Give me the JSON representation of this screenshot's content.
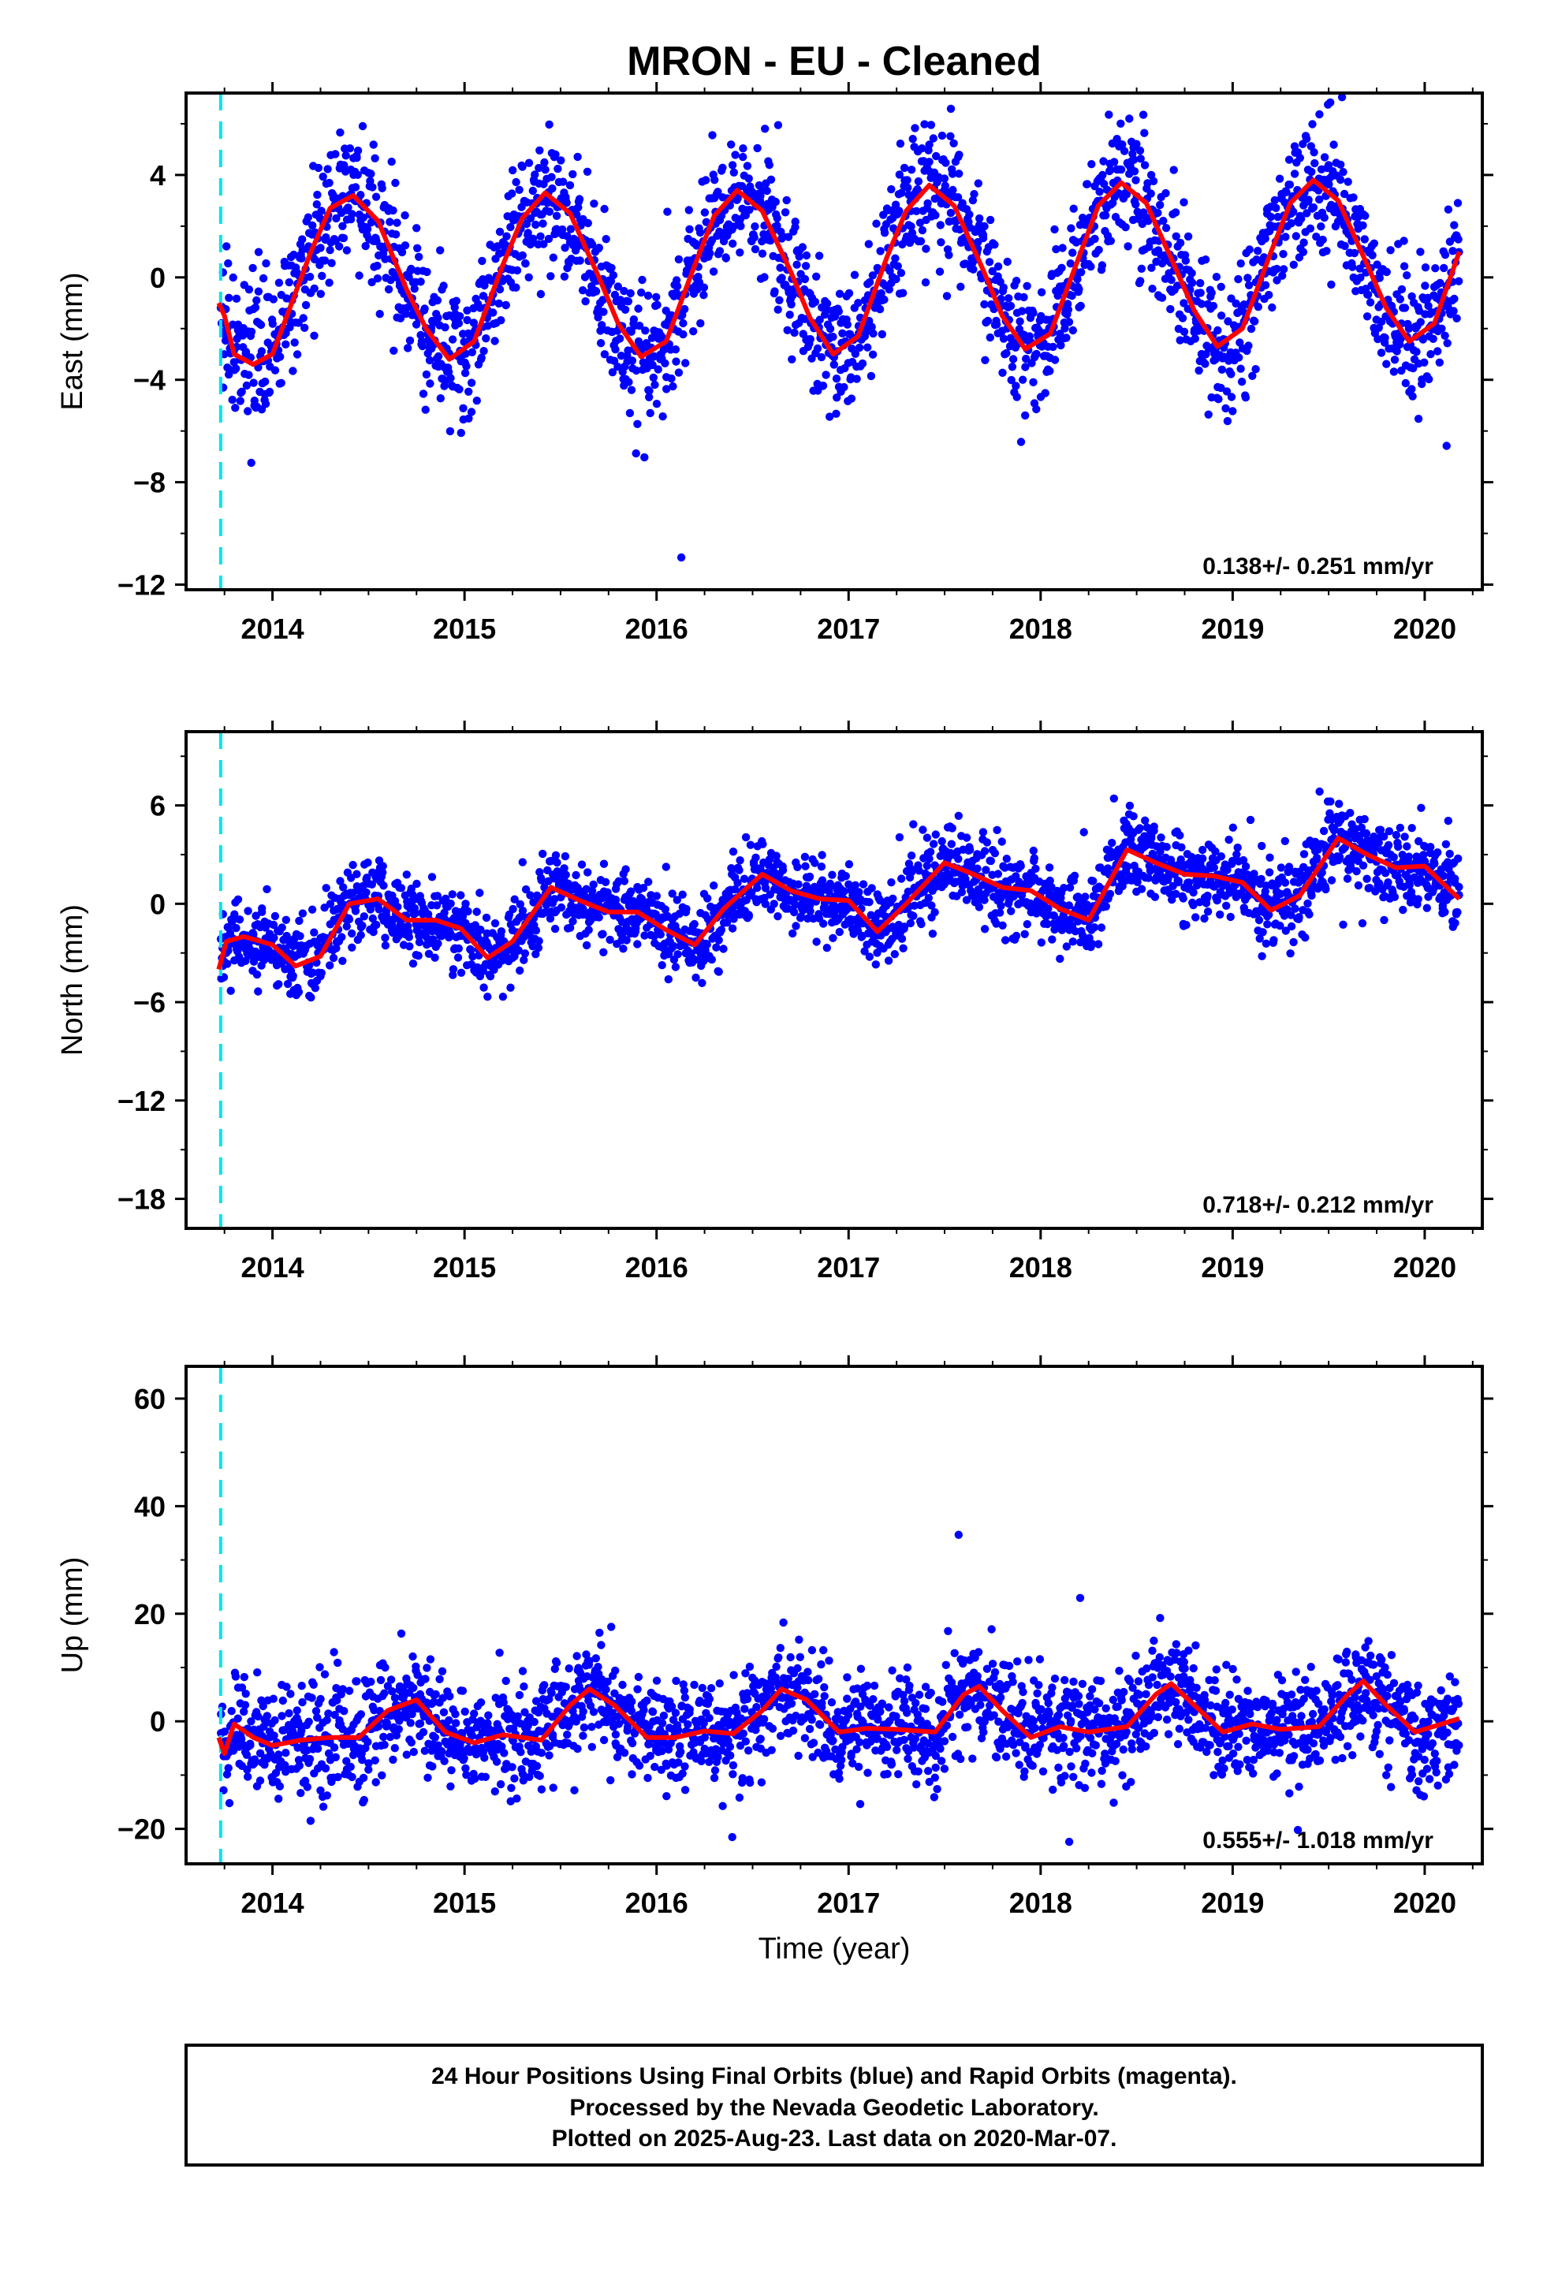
{
  "colors": {
    "final_orbits": "#0000ff",
    "model_fit": "#ff0000",
    "antenna_change": "#00e5ee",
    "frame": "#000000"
  },
  "chart_data": [
    {
      "type": "scatter",
      "title": "MRON  - EU - Cleaned",
      "xlabel": "",
      "ylabel": "East (mm)",
      "xlim": [
        2013.55,
        2020.3
      ],
      "ylim": [
        -12.2,
        7.2
      ],
      "x_ticks": [
        2014,
        2015,
        2016,
        2017,
        2018,
        2019,
        2020
      ],
      "x_tick_labels": [
        "2014",
        "2015",
        "2016",
        "2017",
        "2018",
        "2019",
        "2020"
      ],
      "y_ticks": [
        -12,
        -8,
        -4,
        0,
        4
      ],
      "y_tick_labels": [
        "−12",
        "−8",
        "−4",
        "0",
        "4"
      ],
      "grid": false,
      "vline_x": 2013.73,
      "rate_text": "0.138+/- 0.251 mm/yr",
      "series": [
        {
          "type": "line",
          "x": [
            2013.72,
            2013.75,
            2013.8,
            2013.9,
            2014.0,
            2014.1,
            2014.2,
            2014.3,
            2014.42,
            2014.55,
            2014.7,
            2014.8,
            2014.92,
            2015.05,
            2015.2,
            2015.3,
            2015.42,
            2015.55,
            2015.7,
            2015.8,
            2015.92,
            2016.05,
            2016.2,
            2016.3,
            2016.42,
            2016.55,
            2016.7,
            2016.8,
            2016.92,
            2017.05,
            2017.2,
            2017.3,
            2017.42,
            2017.55,
            2017.7,
            2017.8,
            2017.92,
            2018.05,
            2018.2,
            2018.3,
            2018.42,
            2018.55,
            2018.7,
            2018.8,
            2018.92,
            2019.05,
            2019.2,
            2019.3,
            2019.42,
            2019.55,
            2019.7,
            2019.8,
            2019.92,
            2020.05,
            2020.18
          ],
          "y": [
            -1,
            -1.5,
            -3,
            -3.4,
            -3,
            -1,
            1,
            2.7,
            3.2,
            2.2,
            -0.5,
            -2,
            -3.2,
            -2.5,
            0.5,
            2.3,
            3.3,
            2.5,
            0,
            -1.8,
            -3.1,
            -2.5,
            0.5,
            2.4,
            3.4,
            2.6,
            0.2,
            -1.6,
            -3,
            -2.3,
            0.8,
            2.6,
            3.6,
            2.8,
            0.3,
            -1.5,
            -2.8,
            -2.2,
            0.8,
            2.8,
            3.7,
            2.9,
            0.4,
            -1.3,
            -2.7,
            -2,
            1,
            2.9,
            3.8,
            3,
            0.5,
            -1.2,
            -2.5,
            -1.8,
            1
          ]
        }
      ]
    },
    {
      "type": "scatter",
      "title": "",
      "xlabel": "",
      "ylabel": "North (mm)",
      "xlim": [
        2013.55,
        2020.3
      ],
      "ylim": [
        -19.8,
        10.5
      ],
      "x_ticks": [
        2014,
        2015,
        2016,
        2017,
        2018,
        2019,
        2020
      ],
      "x_tick_labels": [
        "2014",
        "2015",
        "2016",
        "2017",
        "2018",
        "2019",
        "2020"
      ],
      "y_ticks": [
        -18,
        -12,
        -6,
        0,
        6
      ],
      "y_tick_labels": [
        "−18",
        "−12",
        "−6",
        "0",
        "6"
      ],
      "grid": false,
      "vline_x": 2013.73,
      "rate_text": "0.718+/- 0.212 mm/yr",
      "series": [
        {
          "type": "line",
          "x": [
            2013.72,
            2013.76,
            2013.85,
            2014.0,
            2014.12,
            2014.25,
            2014.4,
            2014.55,
            2014.7,
            2014.85,
            2014.98,
            2015.12,
            2015.25,
            2015.45,
            2015.6,
            2015.75,
            2015.9,
            2016.05,
            2016.2,
            2016.35,
            2016.55,
            2016.7,
            2016.85,
            2017.0,
            2017.15,
            2017.3,
            2017.5,
            2017.65,
            2017.8,
            2017.95,
            2018.1,
            2018.25,
            2018.45,
            2018.6,
            2018.75,
            2018.9,
            2019.05,
            2019.2,
            2019.35,
            2019.55,
            2019.7,
            2019.85,
            2020.0,
            2020.18
          ],
          "y": [
            -4,
            -2.3,
            -2,
            -2.5,
            -3.8,
            -3.2,
            0,
            0.3,
            -1,
            -1,
            -1.5,
            -3.3,
            -2.3,
            1,
            0.2,
            -0.5,
            -0.5,
            -1.6,
            -2.5,
            -0.3,
            1.8,
            0.8,
            0.3,
            0.2,
            -1.7,
            0,
            2.5,
            1.8,
            1,
            0.8,
            -0.3,
            -1,
            3.3,
            2.5,
            1.8,
            1.7,
            1.3,
            -0.4,
            0.5,
            4,
            3,
            2.2,
            2.3,
            0.3
          ]
        }
      ]
    },
    {
      "type": "scatter",
      "title": "",
      "xlabel": "Time (year)",
      "ylabel": "Up (mm)",
      "xlim": [
        2013.55,
        2020.3
      ],
      "ylim": [
        -26.5,
        66
      ],
      "x_ticks": [
        2014,
        2015,
        2016,
        2017,
        2018,
        2019,
        2020
      ],
      "x_tick_labels": [
        "2014",
        "2015",
        "2016",
        "2017",
        "2018",
        "2019",
        "2020"
      ],
      "y_ticks": [
        -20,
        0,
        20,
        40,
        60
      ],
      "y_tick_labels": [
        "−20",
        "0",
        "20",
        "40",
        "60"
      ],
      "grid": false,
      "vline_x": 2013.73,
      "rate_text": "0.555+/- 1.018 mm/yr",
      "series": [
        {
          "type": "line",
          "x": [
            2013.72,
            2013.75,
            2013.8,
            2013.9,
            2014.0,
            2014.15,
            2014.3,
            2014.45,
            2014.6,
            2014.75,
            2014.9,
            2015.05,
            2015.2,
            2015.4,
            2015.55,
            2015.65,
            2015.78,
            2015.95,
            2016.1,
            2016.25,
            2016.4,
            2016.55,
            2016.65,
            2016.78,
            2016.95,
            2017.1,
            2017.25,
            2017.45,
            2017.6,
            2017.68,
            2017.8,
            2017.95,
            2018.1,
            2018.25,
            2018.45,
            2018.6,
            2018.68,
            2018.8,
            2018.95,
            2019.1,
            2019.25,
            2019.45,
            2019.6,
            2019.68,
            2019.8,
            2019.95,
            2020.18
          ],
          "y": [
            -3,
            -6,
            -0.5,
            -3,
            -4.5,
            -3.5,
            -3,
            -3,
            2,
            4,
            -2,
            -4,
            -2.5,
            -3.5,
            3,
            6,
            3,
            -3,
            -3,
            -1.8,
            -2.3,
            2,
            6,
            4,
            -2,
            -1.3,
            -1.5,
            -2,
            5,
            6.5,
            2,
            -3,
            -1,
            -2,
            -1,
            5,
            7,
            3,
            -2,
            -0.5,
            -1.5,
            -1,
            5,
            7.5,
            3,
            -2,
            0.5
          ]
        }
      ]
    }
  ],
  "footer": {
    "line1": "24 Hour Positions Using Final Orbits (blue) and Rapid Orbits (magenta).",
    "line2": "Processed by the Nevada Geodetic Laboratory.",
    "line3": "Plotted on 2025-Aug-23. Last data on 2020-Mar-07."
  }
}
